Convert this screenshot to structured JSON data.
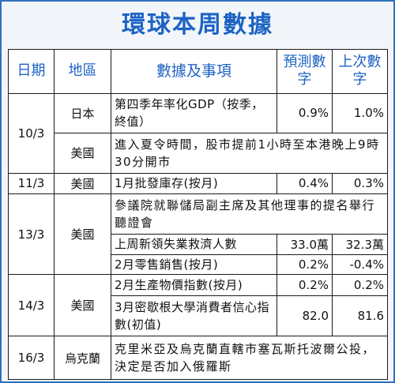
{
  "title": "環球本周數據",
  "headers": {
    "date": "日期",
    "region": "地區",
    "event": "數據及事項",
    "forecast": "預測數字",
    "previous": "上次數字"
  },
  "rows": [
    {
      "date": "10/3",
      "region": "日本",
      "event": "第四季年率化GDP（按季，終值）",
      "forecast": "0.9%",
      "previous": "1.0%"
    },
    {
      "region": "美國",
      "event": "進入夏令時間，股市提前1小時至本港晚上9時30分開市"
    },
    {
      "date": "11/3",
      "region": "美國",
      "event": "1月批發庫存(按月)",
      "forecast": "0.4%",
      "previous": "0.3%"
    },
    {
      "date": "13/3",
      "region": "美國",
      "event": "參議院就聯儲局副主席及其他理事的提名舉行聽證會"
    },
    {
      "event": "上周新領失業救濟人數",
      "forecast": "33.0萬",
      "previous": "32.3萬"
    },
    {
      "event": "2月零售銷售(按月)",
      "forecast": "0.2%",
      "previous": "-0.4%"
    },
    {
      "date": "14/3",
      "region": "美國",
      "event": "2月生產物價指數(按月)",
      "forecast": "0.2%",
      "previous": "0.2%"
    },
    {
      "event": "3月密歇根大學消費者信心指數(初值)",
      "forecast": "82.0",
      "previous": "81.6"
    },
    {
      "date": "16/3",
      "region": "烏克蘭",
      "event": "克里米亞及烏克蘭直轄市塞瓦斯托波爾公投，決定是否加入俄羅斯"
    }
  ]
}
